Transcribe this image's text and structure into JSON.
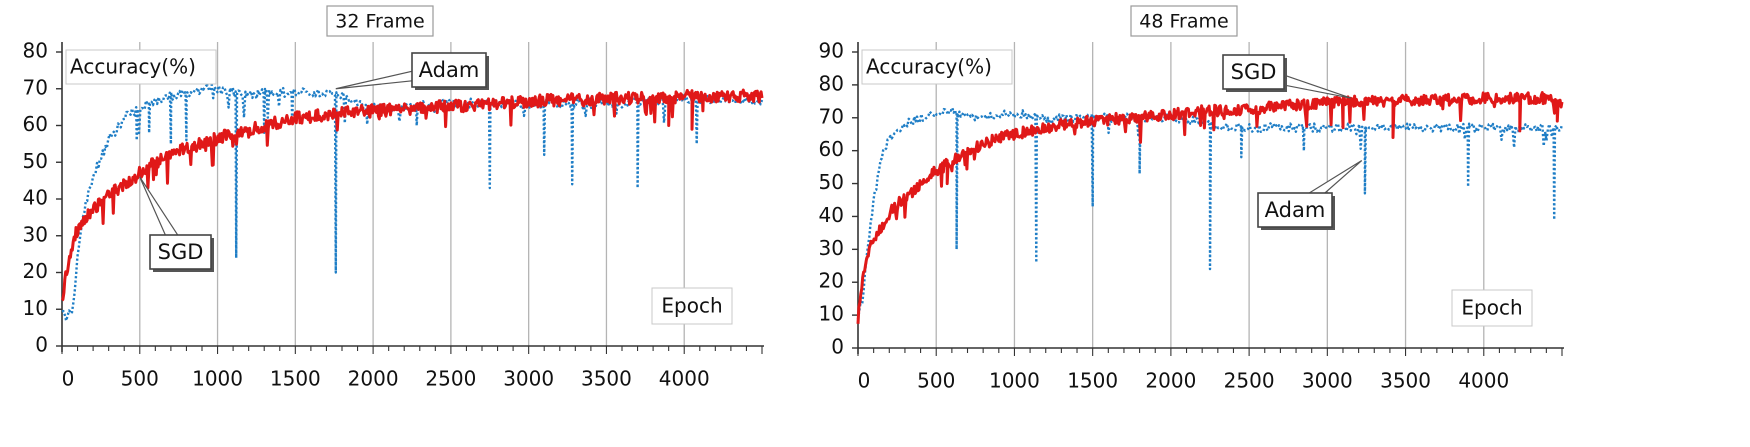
{
  "chart_data": [
    {
      "type": "line",
      "title": "32 Frame",
      "ylabel": "Accuracy(%)",
      "xlabel": "Epoch",
      "xlim": [
        0,
        4500
      ],
      "ylim": [
        0,
        80
      ],
      "xticks": [
        0,
        500,
        1000,
        1500,
        2000,
        2500,
        3000,
        3500,
        4000
      ],
      "yticks": [
        0,
        10,
        20,
        30,
        40,
        50,
        60,
        70,
        80
      ],
      "grid": "vertical",
      "series": [
        {
          "name": "SGD",
          "color": "#e01818",
          "style": "solid",
          "points": [
            [
              0,
              12
            ],
            [
              20,
              18
            ],
            [
              50,
              25
            ],
            [
              80,
              30
            ],
            [
              120,
              33
            ],
            [
              200,
              37
            ],
            [
              300,
              41
            ],
            [
              400,
              44
            ],
            [
              500,
              47
            ],
            [
              600,
              50
            ],
            [
              700,
              52
            ],
            [
              800,
              54
            ],
            [
              900,
              55
            ],
            [
              1000,
              56.5
            ],
            [
              1100,
              58
            ],
            [
              1200,
              59
            ],
            [
              1300,
              60
            ],
            [
              1400,
              61
            ],
            [
              1500,
              62
            ],
            [
              1600,
              62.5
            ],
            [
              1700,
              63
            ],
            [
              1800,
              63.5
            ],
            [
              2000,
              64
            ],
            [
              2200,
              64.5
            ],
            [
              2400,
              65
            ],
            [
              2600,
              65.5
            ],
            [
              2800,
              66
            ],
            [
              3000,
              66.5
            ],
            [
              3200,
              67
            ],
            [
              3400,
              67
            ],
            [
              3600,
              67.5
            ],
            [
              3800,
              67.5
            ],
            [
              4000,
              68
            ],
            [
              4200,
              68
            ],
            [
              4400,
              68
            ],
            [
              4500,
              68
            ]
          ],
          "dips": [
            [
              3900,
              60
            ],
            [
              4050,
              59
            ],
            [
              4120,
              64
            ]
          ]
        },
        {
          "name": "Adam",
          "color": "#1f7ec6",
          "style": "dotted",
          "points": [
            [
              0,
              9
            ],
            [
              30,
              8
            ],
            [
              60,
              9
            ],
            [
              80,
              15
            ],
            [
              100,
              25
            ],
            [
              150,
              38
            ],
            [
              200,
              46
            ],
            [
              300,
              56
            ],
            [
              400,
              62
            ],
            [
              500,
              65
            ],
            [
              600,
              67
            ],
            [
              700,
              68
            ],
            [
              800,
              69
            ],
            [
              900,
              70
            ],
            [
              1000,
              70
            ],
            [
              1100,
              69
            ],
            [
              1200,
              68
            ],
            [
              1300,
              69
            ],
            [
              1400,
              69
            ],
            [
              1500,
              69
            ],
            [
              1600,
              69
            ],
            [
              1700,
              69
            ],
            [
              1800,
              68
            ],
            [
              1900,
              66
            ],
            [
              2000,
              65
            ],
            [
              2200,
              65
            ],
            [
              2500,
              66
            ],
            [
              3000,
              66
            ],
            [
              3500,
              66
            ],
            [
              4000,
              67
            ],
            [
              4500,
              67
            ]
          ],
          "dips": [
            [
              480,
              56
            ],
            [
              560,
              58
            ],
            [
              700,
              55
            ],
            [
              800,
              56
            ],
            [
              1120,
              24
            ],
            [
              1300,
              58
            ],
            [
              1480,
              60
            ],
            [
              1760,
              20
            ],
            [
              2280,
              60
            ],
            [
              2750,
              43
            ],
            [
              3100,
              52
            ],
            [
              3280,
              44
            ],
            [
              3700,
              43
            ],
            [
              4080,
              55
            ]
          ]
        }
      ],
      "annotations": [
        {
          "text": "Adam",
          "target": [
            1760,
            70
          ]
        },
        {
          "text": "SGD",
          "target": [
            500,
            46
          ]
        }
      ]
    },
    {
      "type": "line",
      "title": "48 Frame",
      "ylabel": "Accuracy(%)",
      "xlabel": "Epoch",
      "xlim": [
        0,
        4500
      ],
      "ylim": [
        0,
        90
      ],
      "xticks": [
        0,
        500,
        1000,
        1500,
        2000,
        2500,
        3000,
        3500,
        4000
      ],
      "yticks": [
        0,
        10,
        20,
        30,
        40,
        50,
        60,
        70,
        80,
        90
      ],
      "grid": "vertical",
      "series": [
        {
          "name": "SGD",
          "color": "#e01818",
          "style": "solid",
          "points": [
            [
              0,
              9
            ],
            [
              30,
              20
            ],
            [
              60,
              28
            ],
            [
              100,
              33
            ],
            [
              200,
              41
            ],
            [
              300,
              46
            ],
            [
              400,
              50
            ],
            [
              500,
              54
            ],
            [
              600,
              57
            ],
            [
              700,
              60
            ],
            [
              800,
              62
            ],
            [
              900,
              64
            ],
            [
              1000,
              65
            ],
            [
              1100,
              66
            ],
            [
              1200,
              67
            ],
            [
              1300,
              68
            ],
            [
              1400,
              68.5
            ],
            [
              1500,
              69
            ],
            [
              1600,
              69.5
            ],
            [
              1800,
              70
            ],
            [
              2000,
              71
            ],
            [
              2200,
              72
            ],
            [
              2400,
              72.5
            ],
            [
              2600,
              73
            ],
            [
              2800,
              74
            ],
            [
              3000,
              74.5
            ],
            [
              3200,
              75
            ],
            [
              3400,
              75
            ],
            [
              3600,
              75.5
            ],
            [
              3800,
              75.5
            ],
            [
              4000,
              76
            ],
            [
              4200,
              76
            ],
            [
              4400,
              76
            ],
            [
              4500,
              74
            ]
          ],
          "dips": [
            [
              570,
              50
            ],
            [
              3100,
              67
            ],
            [
              3420,
              64
            ],
            [
              4230,
              66
            ],
            [
              4470,
              69
            ]
          ]
        },
        {
          "name": "Adam",
          "color": "#1f7ec6",
          "style": "dotted",
          "points": [
            [
              0,
              10
            ],
            [
              30,
              15
            ],
            [
              60,
              30
            ],
            [
              100,
              45
            ],
            [
              150,
              58
            ],
            [
              200,
              64
            ],
            [
              300,
              68
            ],
            [
              400,
              70
            ],
            [
              500,
              71
            ],
            [
              600,
              72
            ],
            [
              700,
              70
            ],
            [
              800,
              70
            ],
            [
              900,
              71
            ],
            [
              1000,
              71
            ],
            [
              1100,
              71
            ],
            [
              1200,
              70
            ],
            [
              1300,
              70
            ],
            [
              1400,
              70
            ],
            [
              1500,
              70
            ],
            [
              1600,
              70
            ],
            [
              1800,
              70
            ],
            [
              2000,
              70
            ],
            [
              2200,
              69
            ],
            [
              2300,
              67
            ],
            [
              2500,
              67
            ],
            [
              3000,
              67
            ],
            [
              3500,
              67
            ],
            [
              4000,
              67
            ],
            [
              4500,
              67
            ]
          ],
          "dips": [
            [
              630,
              30
            ],
            [
              1140,
              26
            ],
            [
              1500,
              43
            ],
            [
              1800,
              53
            ],
            [
              2250,
              24
            ],
            [
              2450,
              58
            ],
            [
              2850,
              60
            ],
            [
              3240,
              47
            ],
            [
              3900,
              49
            ],
            [
              4450,
              39
            ]
          ]
        }
      ],
      "annotations": [
        {
          "text": "SGD",
          "target": [
            3150,
            76
          ]
        },
        {
          "text": "Adam",
          "target": [
            3220,
            57
          ]
        }
      ]
    }
  ]
}
